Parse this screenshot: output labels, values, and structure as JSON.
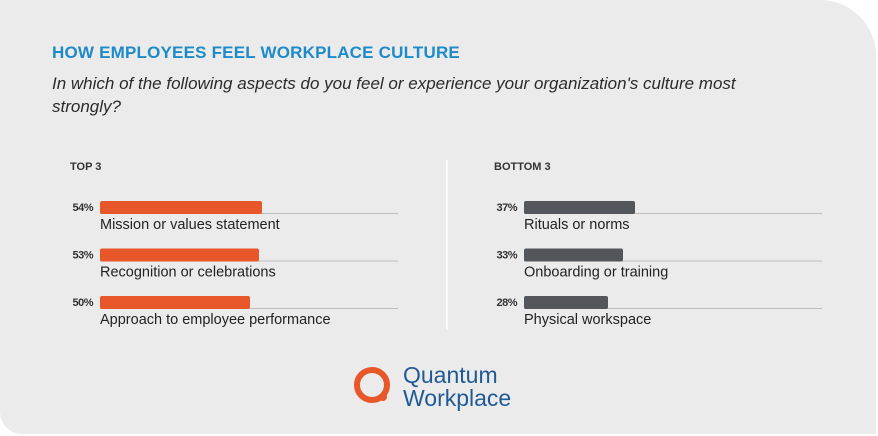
{
  "header": {
    "title": "HOW EMPLOYEES FEEL WORKPLACE CULTURE",
    "subtitle": "In which of the following aspects do you feel or experience your organization's culture most strongly?"
  },
  "chart_data": [
    {
      "type": "bar",
      "orientation": "horizontal",
      "title": "TOP 3",
      "categories": [
        "Mission or values statement",
        "Recognition or celebrations",
        "Approach to employee performance"
      ],
      "values": [
        54,
        53,
        50
      ],
      "value_labels": [
        "54%",
        "53%",
        "50%"
      ],
      "color": "#e8572a"
    },
    {
      "type": "bar",
      "orientation": "horizontal",
      "title": "BOTTOM 3",
      "categories": [
        "Rituals or norms",
        "Onboarding or training",
        "Physical workspace"
      ],
      "values": [
        37,
        33,
        28
      ],
      "value_labels": [
        "37%",
        "33%",
        "28%"
      ],
      "color": "#53575c"
    }
  ],
  "logo": {
    "lines": [
      "Quantum",
      "Workplace"
    ]
  }
}
